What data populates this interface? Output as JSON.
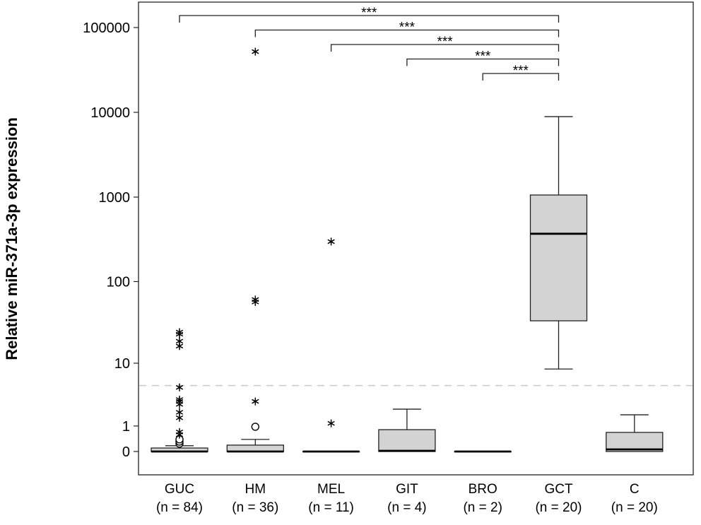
{
  "chart_data": {
    "type": "box",
    "ylabel": "Relative miR-371a-3p expression",
    "xlabel": "",
    "yscale": "log10(y+1)",
    "ylim": [
      0,
      120000
    ],
    "yticks": [
      0,
      1,
      10,
      100,
      1000,
      10000,
      100000
    ],
    "ytick_labels": [
      "0",
      "1",
      "10",
      "100",
      "1000",
      "10000",
      "100000"
    ],
    "grid": false,
    "reference_line": {
      "value": 5,
      "style": "dashed",
      "color": "#c8c8c8"
    },
    "box_color": "#d3d3d3",
    "categories": [
      {
        "label": "GUC",
        "n_label": "(n = 84)",
        "q1": 0,
        "median": 0,
        "q3": 0.1,
        "whisker_low": 0,
        "whisker_high": 0.17,
        "outliers_circle": [
          0.24,
          0.31,
          0.39
        ],
        "outliers_star": [
          0.58,
          0.7,
          1.5,
          1.9,
          2.6,
          2.9,
          3.1,
          4.7,
          16.5,
          19,
          23.2,
          24.6
        ]
      },
      {
        "label": "HM",
        "n_label": "(n = 36)",
        "q1": 0,
        "median": 0,
        "q3": 0.19,
        "whisker_low": 0,
        "whisker_high": 0.39,
        "outliers_circle": [
          0.96
        ],
        "outliers_star": [
          2.9,
          57,
          61,
          52000
        ]
      },
      {
        "label": "MEL",
        "n_label": "(n = 11)",
        "q1": 0,
        "median": 0,
        "q3": 0,
        "whisker_low": 0,
        "whisker_high": 0,
        "outliers_circle": [],
        "outliers_star": [
          1.15,
          298
        ]
      },
      {
        "label": "GIT",
        "n_label": "(n = 4)",
        "q1": 0,
        "median": 0.02,
        "q3": 0.81,
        "whisker_low": 0,
        "whisker_high": 2.16,
        "outliers_circle": [],
        "outliers_star": []
      },
      {
        "label": "BRO",
        "n_label": "(n = 2)",
        "q1": 0,
        "median": 0,
        "q3": 0,
        "whisker_low": 0,
        "whisker_high": 0,
        "outliers_circle": [],
        "outliers_star": []
      },
      {
        "label": "GCT",
        "n_label": "(n = 20)",
        "q1": 33.8,
        "median": 369,
        "q3": 1059,
        "whisker_low": 8.4,
        "whisker_high": 8900,
        "outliers_circle": [],
        "outliers_star": []
      },
      {
        "label": "C",
        "n_label": "(n = 20)",
        "q1": 0,
        "median": 0.06,
        "q3": 0.68,
        "whisker_low": 0,
        "whisker_high": 1.71,
        "outliers_circle": [],
        "outliers_star": []
      }
    ],
    "significance": [
      {
        "from": "GUC",
        "to": "GCT",
        "label": "***"
      },
      {
        "from": "HM",
        "to": "GCT",
        "label": "***"
      },
      {
        "from": "MEL",
        "to": "GCT",
        "label": "***"
      },
      {
        "from": "GIT",
        "to": "GCT",
        "label": "***"
      },
      {
        "from": "BRO",
        "to": "GCT",
        "label": "***"
      }
    ]
  }
}
